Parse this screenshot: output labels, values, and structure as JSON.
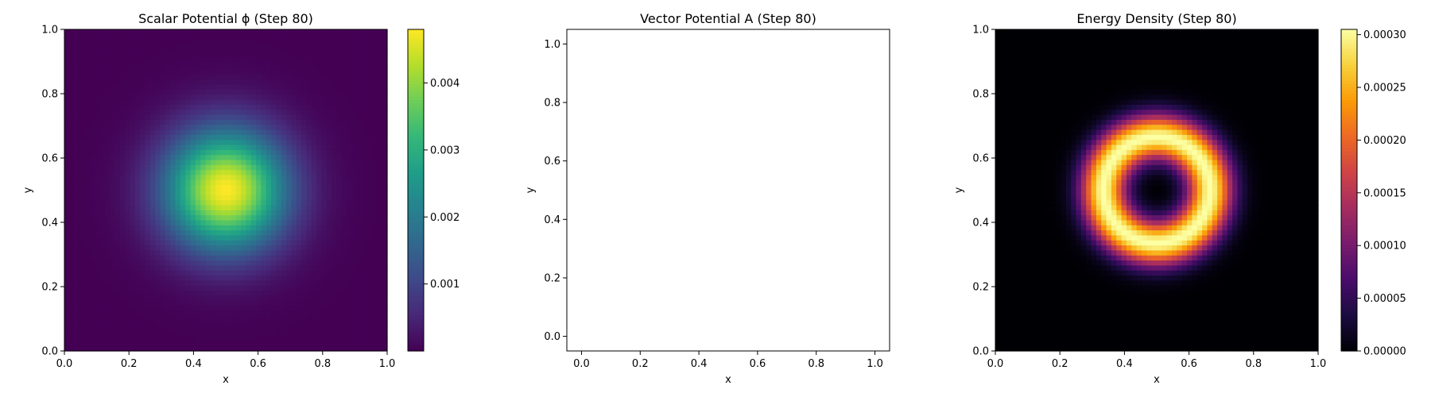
{
  "chart_data": [
    {
      "type": "heatmap",
      "title": "Scalar Potential ϕ (Step 80)",
      "xlabel": "x",
      "ylabel": "y",
      "xlim": [
        0.0,
        1.0
      ],
      "ylim": [
        0.0,
        1.0
      ],
      "xticks": [
        "0.0",
        "0.2",
        "0.4",
        "0.6",
        "0.8",
        "1.0"
      ],
      "yticks": [
        "0.0",
        "0.2",
        "0.4",
        "0.6",
        "0.8",
        "1.0"
      ],
      "colormap": "viridis",
      "colorbar_range": [
        0.0,
        0.0048
      ],
      "colorbar_ticks": [
        "0.001",
        "0.002",
        "0.003",
        "0.004"
      ],
      "field": {
        "shape": "gaussian",
        "center": [
          0.5,
          0.5
        ],
        "sigma": 0.13,
        "peak": 0.0048
      }
    },
    {
      "type": "scatter",
      "title": "Vector Potential A (Step 80)",
      "xlabel": "x",
      "ylabel": "y",
      "xlim": [
        -0.05,
        1.05
      ],
      "ylim": [
        -0.05,
        1.05
      ],
      "xticks": [
        "0.0",
        "0.2",
        "0.4",
        "0.6",
        "0.8",
        "1.0"
      ],
      "yticks": [
        "0.0",
        "0.2",
        "0.4",
        "0.6",
        "0.8",
        "1.0"
      ],
      "series": []
    },
    {
      "type": "heatmap",
      "title": "Energy Density (Step 80)",
      "xlabel": "x",
      "ylabel": "y",
      "xlim": [
        0.0,
        1.0
      ],
      "ylim": [
        0.0,
        1.0
      ],
      "xticks": [
        "0.0",
        "0.2",
        "0.4",
        "0.6",
        "0.8",
        "1.0"
      ],
      "yticks": [
        "0.0",
        "0.2",
        "0.4",
        "0.6",
        "0.8",
        "1.0"
      ],
      "colormap": "inferno",
      "colorbar_range": [
        0.0,
        0.000305
      ],
      "colorbar_ticks": [
        "0.00000",
        "0.00005",
        "0.00010",
        "0.00015",
        "0.00020",
        "0.00025",
        "0.00030"
      ],
      "field": {
        "shape": "ring",
        "center": [
          0.5,
          0.5
        ],
        "radius": 0.165,
        "width": 0.07,
        "peak": 0.000305
      }
    }
  ]
}
